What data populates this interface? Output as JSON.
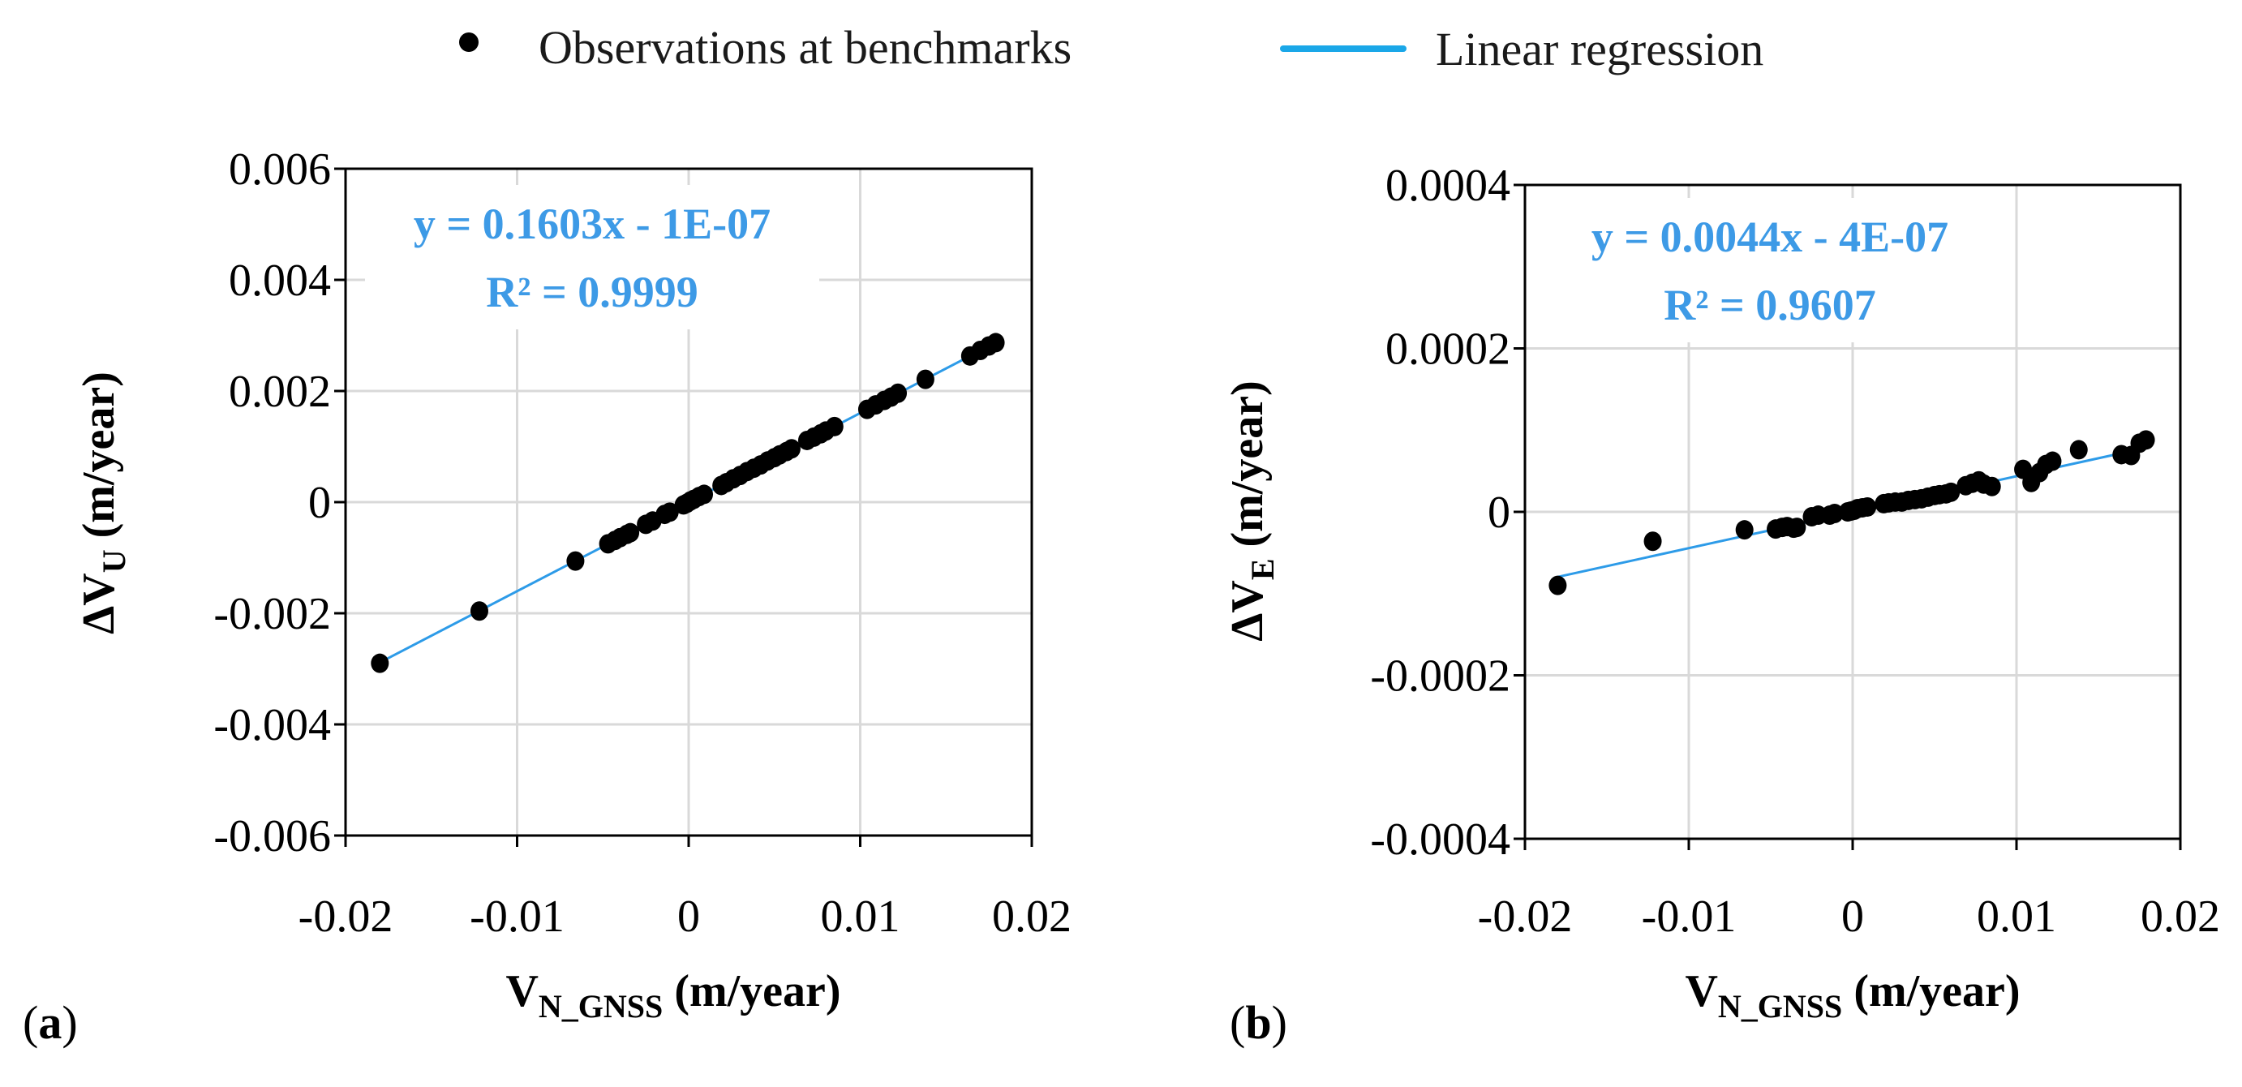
{
  "colors": {
    "points": "#000000",
    "regression": "#2d9be8",
    "annotation": "#3d9ae6",
    "grid": "#d9d9d9"
  },
  "legend": {
    "observations_label": "Observations at benchmarks",
    "regression_label": "Linear regression"
  },
  "chart_data": [
    {
      "type": "scatter",
      "panel_label": "(a)",
      "panel_letter": "a",
      "xlabel": {
        "main": "V",
        "sub": "N_GNSS",
        "unit": " (m/year)"
      },
      "ylabel": {
        "main": "ΔV",
        "sub": "U",
        "unit": " (m/year)"
      },
      "xlim": [
        -0.02,
        0.02
      ],
      "ylim": [
        -0.006,
        0.006
      ],
      "x_ticks": [
        -0.02,
        -0.01,
        0,
        0.01,
        0.02
      ],
      "x_tick_labels": [
        "-0.02",
        "-0.01",
        "0",
        "0.01",
        "0.02"
      ],
      "y_ticks": [
        0.006,
        0.004,
        0.002,
        0,
        -0.002,
        -0.004,
        -0.006
      ],
      "y_tick_labels": [
        "0.006",
        "0.004",
        "0.002",
        "0",
        "-0.002",
        "-0.004",
        "-0.006"
      ],
      "grid": true,
      "equation": "y = 0.1603x - 1E-07",
      "r_squared": "R² = 0.9999",
      "regression": {
        "slope": 0.1603,
        "intercept": -1e-07,
        "x_range": [
          -0.018,
          0.018
        ]
      },
      "x": [
        -0.018,
        -0.0122,
        -0.0066,
        -0.0047,
        -0.0043,
        -0.004,
        -0.0036,
        -0.0034,
        -0.0025,
        -0.0021,
        -0.0014,
        -0.0011,
        -0.0003,
        -0.0001,
        0.0001,
        0.0003,
        0.0006,
        0.0009,
        0.0019,
        0.0022,
        0.0026,
        0.003,
        0.0034,
        0.0038,
        0.0042,
        0.0046,
        0.005,
        0.0053,
        0.0057,
        0.006,
        0.0069,
        0.0073,
        0.0077,
        0.008,
        0.0085,
        0.0104,
        0.0109,
        0.0114,
        0.0118,
        0.0122,
        0.0138,
        0.0164,
        0.017,
        0.0175,
        0.0179
      ],
      "y": [
        -0.0029,
        -0.00196,
        -0.00106,
        -0.00075,
        -0.00069,
        -0.00064,
        -0.00058,
        -0.00055,
        -0.0004,
        -0.00034,
        -0.00022,
        -0.00018,
        -5e-05,
        -2e-05,
        2e-05,
        5e-05,
        0.0001,
        0.00014,
        0.0003,
        0.00035,
        0.00042,
        0.00048,
        0.00055,
        0.00061,
        0.00067,
        0.00074,
        0.0008,
        0.00085,
        0.00091,
        0.00096,
        0.00111,
        0.00117,
        0.00123,
        0.00128,
        0.00136,
        0.00167,
        0.00175,
        0.00183,
        0.00189,
        0.00196,
        0.00221,
        0.00263,
        0.00273,
        0.00281,
        0.00287
      ]
    },
    {
      "type": "scatter",
      "panel_label": "(b)",
      "panel_letter": "b",
      "xlabel": {
        "main": "V",
        "sub": "N_GNSS",
        "unit": " (m/year)"
      },
      "ylabel": {
        "main": "ΔV",
        "sub": "E",
        "unit": " (m/year)"
      },
      "xlim": [
        -0.02,
        0.02
      ],
      "ylim": [
        -0.0004,
        0.0004
      ],
      "x_ticks": [
        -0.02,
        -0.01,
        0,
        0.01,
        0.02
      ],
      "x_tick_labels": [
        "-0.02",
        "-0.01",
        "0",
        "0.01",
        "0.02"
      ],
      "y_ticks": [
        0.0004,
        0.0002,
        0,
        -0.0002,
        -0.0004
      ],
      "y_tick_labels": [
        "0.0004",
        "0.0002",
        "0",
        "-0.0002",
        "-0.0004"
      ],
      "grid": true,
      "equation": "y = 0.0044x - 4E-07",
      "r_squared": "R² = 0.9607",
      "regression": {
        "slope": 0.0044,
        "intercept": -4e-07,
        "x_range": [
          -0.018,
          0.018
        ]
      },
      "x": [
        -0.018,
        -0.0122,
        -0.0066,
        -0.0047,
        -0.0043,
        -0.004,
        -0.0036,
        -0.0034,
        -0.0025,
        -0.0021,
        -0.0014,
        -0.0011,
        -0.0003,
        -0.0001,
        0.0001,
        0.0003,
        0.0006,
        0.0009,
        0.0019,
        0.0022,
        0.0026,
        0.003,
        0.0034,
        0.0038,
        0.0042,
        0.0046,
        0.005,
        0.0053,
        0.0057,
        0.006,
        0.0069,
        0.0073,
        0.0077,
        0.008,
        0.0085,
        0.0104,
        0.0109,
        0.0114,
        0.0118,
        0.0122,
        0.0138,
        0.0164,
        0.017,
        0.0175,
        0.0179
      ],
      "y": [
        -9e-05,
        -3.6e-05,
        -2.2e-05,
        -2.1e-05,
        -1.9e-05,
        -1.8e-05,
        -2e-05,
        -1.9e-05,
        -6e-06,
        -4e-06,
        -4e-06,
        -2e-06,
        0,
        1e-06,
        2e-06,
        4e-06,
        5e-06,
        6e-06,
        1e-05,
        1.1e-05,
        1.2e-05,
        1.2e-05,
        1.4e-05,
        1.5e-05,
        1.6e-05,
        1.8e-05,
        2e-05,
        2.1e-05,
        2.2e-05,
        2.4e-05,
        3.2e-05,
        3.5e-05,
        3.8e-05,
        3.4e-05,
        3.1e-05,
        5.2e-05,
        3.6e-05,
        4.8e-05,
        5.8e-05,
        6.2e-05,
        7.6e-05,
        7e-05,
        6.9e-05,
        8.4e-05,
        8.8e-05
      ]
    }
  ]
}
